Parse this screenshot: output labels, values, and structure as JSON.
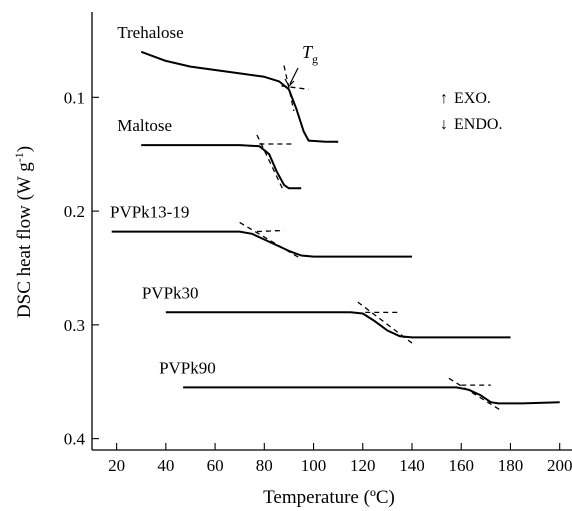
{
  "chart_data": {
    "type": "line",
    "xlabel": "Temperature (ºC)",
    "ylabel": "DSC heat flow (W g",
    "ylabel_sup": "-1",
    "ylabel_close": ")",
    "xlim": [
      10,
      205
    ],
    "ylim": [
      0.025,
      0.41
    ],
    "y_inverted": true,
    "x_ticks": [
      20,
      40,
      60,
      80,
      100,
      120,
      140,
      160,
      180,
      200
    ],
    "x_tick_labels": [
      "20",
      "40",
      "60",
      "80",
      "100",
      "120",
      "140",
      "160",
      "180",
      "200"
    ],
    "y_ticks": [
      0.1,
      0.2,
      0.3,
      0.4
    ],
    "y_tick_labels": [
      "0.1",
      "0.2",
      "0.3",
      "0.4"
    ],
    "legend": {
      "exo": "EXO.",
      "endo": "ENDO.",
      "exo_arrow": "↑",
      "endo_arrow": "↓"
    },
    "tg_annotation": {
      "main": "T",
      "sub": "g",
      "series": "Trehalose"
    },
    "series": [
      {
        "name": "Trehalose",
        "x": [
          30,
          40,
          50,
          60,
          70,
          80,
          86,
          90,
          93,
          96,
          98,
          105,
          110
        ],
        "y": [
          0.06,
          0.068,
          0.073,
          0.076,
          0.079,
          0.082,
          0.086,
          0.093,
          0.11,
          0.13,
          0.138,
          0.139,
          0.139
        ],
        "tangents": [
          [
            [
              87,
              0.09
            ],
            [
              98,
              0.093
            ]
          ],
          [
            [
              88,
              0.072
            ],
            [
              92,
              0.112
            ]
          ]
        ]
      },
      {
        "name": "Maltose",
        "x": [
          30,
          50,
          70,
          78,
          82,
          85,
          88,
          90,
          95
        ],
        "y": [
          0.142,
          0.142,
          0.142,
          0.143,
          0.15,
          0.165,
          0.177,
          0.18,
          0.18
        ],
        "tangents": [
          [
            [
              78,
              0.141
            ],
            [
              91,
              0.141
            ]
          ],
          [
            [
              77,
              0.133
            ],
            [
              88,
              0.183
            ]
          ]
        ]
      },
      {
        "name": "PVPk13-19",
        "x": [
          18,
          40,
          60,
          70,
          75,
          80,
          90,
          95,
          100,
          120,
          140
        ],
        "y": [
          0.218,
          0.218,
          0.218,
          0.218,
          0.22,
          0.225,
          0.235,
          0.239,
          0.24,
          0.24,
          0.24
        ],
        "tangents": [
          [
            [
              77,
              0.218
            ],
            [
              88,
              0.217
            ]
          ],
          [
            [
              70,
              0.21
            ],
            [
              95,
              0.242
            ]
          ]
        ]
      },
      {
        "name": "PVPk30",
        "x": [
          40,
          60,
          80,
          100,
          115,
          120,
          125,
          130,
          135,
          140,
          160,
          180
        ],
        "y": [
          0.289,
          0.289,
          0.289,
          0.289,
          0.289,
          0.29,
          0.297,
          0.305,
          0.31,
          0.311,
          0.311,
          0.311
        ],
        "tangents": [
          [
            [
              121,
              0.289
            ],
            [
              134,
              0.289
            ]
          ],
          [
            [
              118,
              0.28
            ],
            [
              140,
              0.316
            ]
          ]
        ]
      },
      {
        "name": "PVPk90",
        "x": [
          47,
          80,
          100,
          120,
          140,
          158,
          163,
          168,
          172,
          175,
          185,
          200
        ],
        "y": [
          0.355,
          0.355,
          0.355,
          0.355,
          0.355,
          0.355,
          0.357,
          0.362,
          0.368,
          0.369,
          0.369,
          0.368
        ],
        "tangents": [
          [
            [
              160,
              0.353
            ],
            [
              172,
              0.353
            ]
          ],
          [
            [
              155,
              0.347
            ],
            [
              176,
              0.375
            ]
          ]
        ]
      }
    ]
  }
}
